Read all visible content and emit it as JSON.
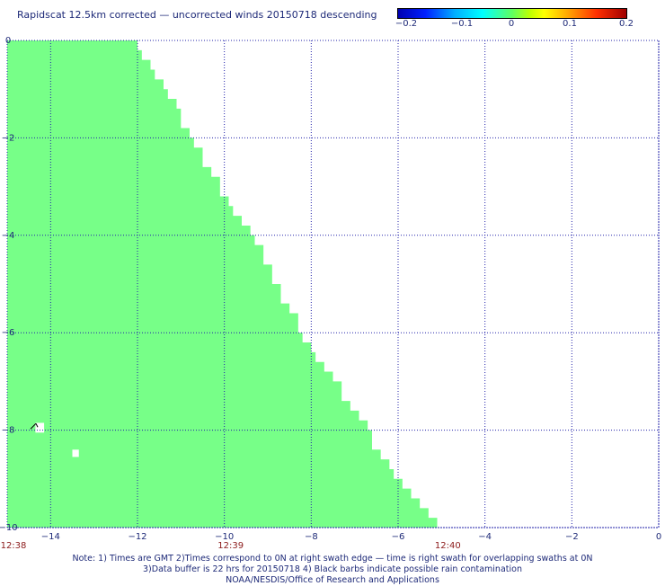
{
  "title": "Rapidscat 12.5km corrected — uncorrected winds 20150718 descending",
  "colorbar": {
    "ticks": [
      "−0.2",
      "−0.1",
      "0",
      "0.1",
      "0.2"
    ],
    "tick_values": [
      -0.2,
      -0.1,
      0,
      0.1,
      0.2
    ]
  },
  "map": {
    "lon_range": [
      -15,
      0
    ],
    "lat_range": [
      -10,
      0
    ],
    "x_ticks": [
      {
        "value": -14,
        "label": "−14"
      },
      {
        "value": -12,
        "label": "−12"
      },
      {
        "value": -10,
        "label": "−10"
      },
      {
        "value": -8,
        "label": "−8"
      },
      {
        "value": -6,
        "label": "−6"
      },
      {
        "value": -4,
        "label": "−4"
      },
      {
        "value": -2,
        "label": "−2"
      },
      {
        "value": 0,
        "label": "0"
      }
    ],
    "y_ticks": [
      {
        "value": 0,
        "label": "0"
      },
      {
        "value": -2,
        "label": "−2"
      },
      {
        "value": -4,
        "label": "−4"
      },
      {
        "value": -6,
        "label": "−6"
      },
      {
        "value": -8,
        "label": "−8"
      },
      {
        "value": -10,
        "label": "−10"
      }
    ],
    "time_labels": [
      {
        "lon": -15,
        "label": "12:38"
      },
      {
        "lon": -10,
        "label": "12:39"
      },
      {
        "lon": -5,
        "label": "12:40"
      }
    ],
    "swath_color": "#77ff88",
    "grid_color": "#2222aa",
    "swath_edge": [
      [
        0,
        -12.0
      ],
      [
        -0.2,
        -11.9
      ],
      [
        -0.4,
        -11.7
      ],
      [
        -0.6,
        -11.6
      ],
      [
        -0.8,
        -11.4
      ],
      [
        -1.0,
        -11.3
      ],
      [
        -1.2,
        -11.1
      ],
      [
        -1.4,
        -11.0
      ],
      [
        -1.8,
        -10.8
      ],
      [
        -2.0,
        -10.7
      ],
      [
        -2.2,
        -10.5
      ],
      [
        -2.6,
        -10.3
      ],
      [
        -2.8,
        -10.1
      ],
      [
        -3.2,
        -9.9
      ],
      [
        -3.4,
        -9.8
      ],
      [
        -3.6,
        -9.6
      ],
      [
        -3.8,
        -9.4
      ],
      [
        -4.0,
        -9.3
      ],
      [
        -4.2,
        -9.1
      ],
      [
        -4.6,
        -8.9
      ],
      [
        -5.0,
        -8.7
      ],
      [
        -5.4,
        -8.5
      ],
      [
        -5.6,
        -8.3
      ],
      [
        -6.0,
        -8.2
      ],
      [
        -6.2,
        -8.0
      ],
      [
        -6.4,
        -7.9
      ],
      [
        -6.6,
        -7.7
      ],
      [
        -6.8,
        -7.5
      ],
      [
        -7.0,
        -7.3
      ],
      [
        -7.4,
        -7.1
      ],
      [
        -7.6,
        -6.9
      ],
      [
        -7.8,
        -6.7
      ],
      [
        -8.0,
        -6.6
      ],
      [
        -8.4,
        -6.4
      ],
      [
        -8.6,
        -6.2
      ],
      [
        -8.8,
        -6.1
      ],
      [
        -9.0,
        -5.9
      ],
      [
        -9.2,
        -5.7
      ],
      [
        -9.4,
        -5.5
      ],
      [
        -9.6,
        -5.3
      ],
      [
        -9.8,
        -5.1
      ],
      [
        -10.0,
        -5.0
      ]
    ],
    "gaps": [
      {
        "lon": -14.35,
        "lat": -7.85,
        "w": 0.2,
        "h": 0.2
      },
      {
        "lon": -13.5,
        "lat": -8.4,
        "w": 0.15,
        "h": 0.15
      }
    ],
    "wind_barb": {
      "lon": -14.4,
      "lat": -7.92
    }
  },
  "notes": [
    "Note: 1) Times are GMT 2)Times correspond to 0N at right swath edge — time is right swath for overlapping swaths at 0N",
    "3)Data buffer is 22 hrs for 20150718 4) Black barbs indicate possible rain contamination",
    "NOAA/NESDIS/Office of Research and Applications"
  ]
}
